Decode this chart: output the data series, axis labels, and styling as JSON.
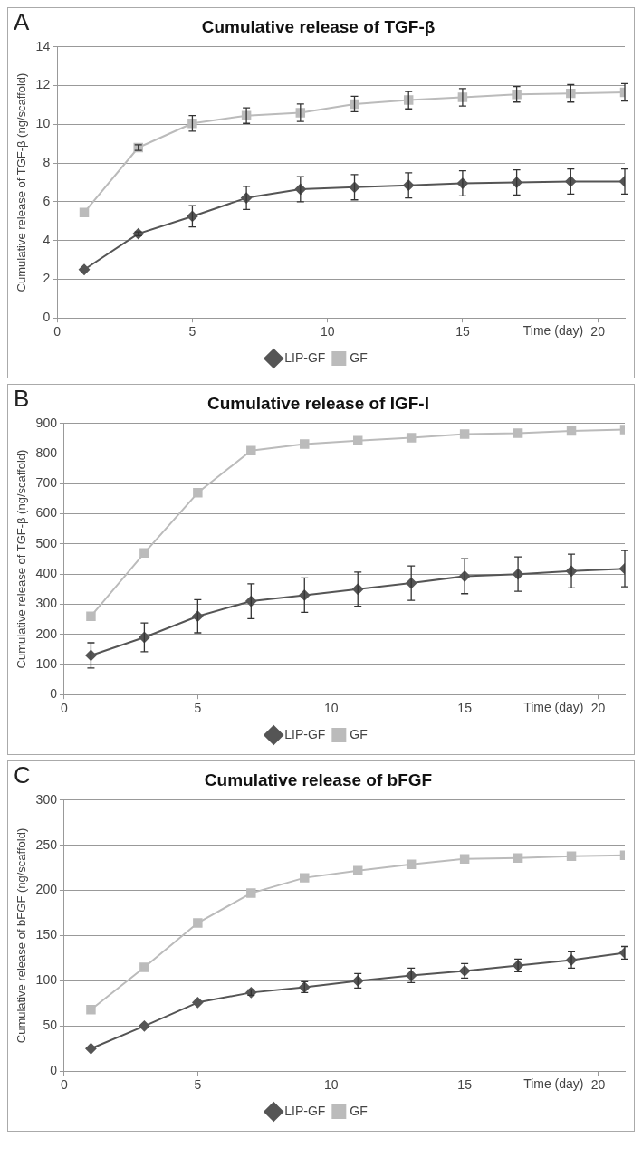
{
  "chart_data": [
    {
      "type": "line",
      "title": "Cumulative release of TGF-β",
      "ylabel": "Cumulative release of TGF-β (ng/scaffold)",
      "xlabel": "Time (day)",
      "annotations": [
        "A"
      ],
      "x": [
        1,
        3,
        5,
        7,
        9,
        11,
        13,
        15,
        17,
        19,
        21
      ],
      "xlim": [
        0,
        21
      ],
      "xticks": [
        0,
        5,
        10,
        15,
        20
      ],
      "ylim": [
        0,
        14
      ],
      "yticks": [
        0,
        2,
        4,
        6,
        8,
        10,
        12,
        14
      ],
      "grid": "y",
      "legend": "bottom",
      "series": [
        {
          "name": "LIP-GF",
          "color": "#555555",
          "marker": "diamond",
          "values": [
            2.5,
            4.35,
            5.25,
            6.2,
            6.65,
            6.75,
            6.85,
            6.95,
            7.0,
            7.05,
            7.05
          ],
          "errors": [
            null,
            0.1,
            0.55,
            0.6,
            0.65,
            0.65,
            0.65,
            0.65,
            0.65,
            0.65,
            0.65
          ]
        },
        {
          "name": "GF",
          "color": "#bbbbbb",
          "marker": "square",
          "values": [
            5.45,
            8.8,
            10.05,
            10.45,
            10.6,
            11.05,
            11.25,
            11.4,
            11.55,
            11.6,
            11.65
          ],
          "errors": [
            null,
            0.15,
            0.4,
            0.4,
            0.45,
            0.4,
            0.45,
            0.45,
            0.4,
            0.45,
            0.45
          ]
        }
      ]
    },
    {
      "type": "line",
      "title": "Cumulative release of IGF-I",
      "ylabel": "Cumulative release of TGF-β (ng/scaffold)",
      "xlabel": "Time (day)",
      "annotations": [
        "B"
      ],
      "x": [
        1,
        3,
        5,
        7,
        9,
        11,
        13,
        15,
        17,
        19,
        21
      ],
      "xlim": [
        0,
        21
      ],
      "xticks": [
        0,
        5,
        10,
        15,
        20
      ],
      "ylim": [
        0,
        900
      ],
      "yticks": [
        0,
        100,
        200,
        300,
        400,
        500,
        600,
        700,
        800,
        900
      ],
      "grid": "y",
      "legend": "bottom",
      "series": [
        {
          "name": "LIP-GF",
          "color": "#555555",
          "marker": "diamond",
          "values": [
            130,
            190,
            260,
            310,
            330,
            350,
            370,
            393,
            400,
            410,
            418
          ],
          "errors": [
            42,
            48,
            55,
            58,
            57,
            57,
            57,
            58,
            57,
            56,
            60
          ]
        },
        {
          "name": "GF",
          "color": "#bbbbbb",
          "marker": "square",
          "values": [
            260,
            470,
            670,
            810,
            832,
            843,
            853,
            865,
            868,
            875,
            880
          ]
        }
      ]
    },
    {
      "type": "line",
      "title": "Cumulative release of bFGF",
      "ylabel": "Cumulative release of bFGF (ng/scaffold)",
      "xlabel": "Time (day)",
      "annotations": [
        "C"
      ],
      "x": [
        1,
        3,
        5,
        7,
        9,
        11,
        13,
        15,
        17,
        19,
        21
      ],
      "xlim": [
        0,
        21
      ],
      "xticks": [
        0,
        5,
        10,
        15,
        20
      ],
      "ylim": [
        0,
        300
      ],
      "yticks": [
        0,
        50,
        100,
        150,
        200,
        250,
        300
      ],
      "grid": "y",
      "legend": "bottom",
      "series": [
        {
          "name": "LIP-GF",
          "color": "#555555",
          "marker": "diamond",
          "values": [
            25,
            50,
            76,
            87,
            93,
            100,
            106,
            111,
            117,
            123,
            131
          ],
          "errors": [
            null,
            null,
            null,
            3,
            6,
            8,
            8,
            8,
            7,
            9,
            7
          ]
        },
        {
          "name": "GF",
          "color": "#bbbbbb",
          "marker": "square",
          "values": [
            68,
            115,
            164,
            197,
            214,
            222,
            229,
            235,
            236,
            238,
            239
          ]
        }
      ]
    }
  ]
}
